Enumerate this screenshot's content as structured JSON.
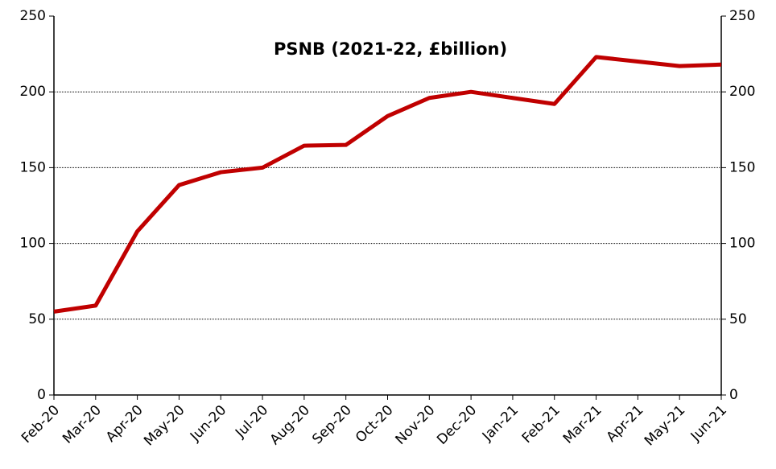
{
  "chart_data": {
    "type": "line",
    "title": "PSNB (2021-22, £billion)",
    "categories": [
      "Feb-20",
      "Mar-20",
      "Apr-20",
      "May-20",
      "Jun-20",
      "Jul-20",
      "Aug-20",
      "Sep-20",
      "Oct-20",
      "Nov-20",
      "Dec-20",
      "Jan-21",
      "Feb-21",
      "Mar-21",
      "Apr-21",
      "May-21",
      "Jun-21"
    ],
    "series": [
      {
        "color": "#c00000",
        "values": [
          55,
          59,
          108,
          138.5,
          147,
          150,
          164.5,
          165,
          184,
          196,
          200,
          196,
          192,
          223,
          220,
          217,
          218
        ]
      }
    ],
    "ylim": [
      0,
      250
    ],
    "yticks": [
      0,
      50,
      100,
      150,
      200,
      250
    ],
    "y2lim": [
      0,
      250
    ],
    "y2ticks": [
      0,
      50,
      100,
      150,
      200,
      250
    ],
    "grid": true
  }
}
